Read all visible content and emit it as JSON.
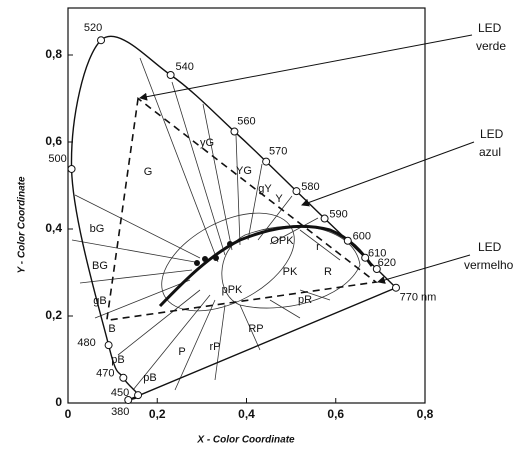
{
  "chart_data": {
    "type": "chromaticity",
    "x_label": "X - Color Coordinate",
    "y_label": "Y - Color Coordinate",
    "xlim": [
      0,
      0.8
    ],
    "ylim": [
      0,
      0.8
    ],
    "xticks": [
      0,
      {
        "value": 0.2,
        "label": "0,2"
      },
      {
        "value": 0.4,
        "label": "0,4"
      },
      {
        "value": 0.6,
        "label": "0,6"
      },
      {
        "value": 0.8,
        "label": "0,8"
      }
    ],
    "yticks": [
      0,
      {
        "value": 0.2,
        "label": "0,2"
      },
      {
        "value": 0.4,
        "label": "0,4"
      },
      {
        "value": 0.6,
        "label": "0,6"
      },
      {
        "value": 0.8,
        "label": "0,8"
      }
    ],
    "spectral_locus": {
      "labels": [
        "380",
        "450",
        "470",
        "480",
        "500",
        "520",
        "540",
        "560",
        "570",
        "580",
        "590",
        "600",
        "610",
        "620",
        "770 nm"
      ],
      "x": [
        0.135,
        0.157,
        0.124,
        0.091,
        0.008,
        0.074,
        0.23,
        0.373,
        0.444,
        0.512,
        0.575,
        0.627,
        0.666,
        0.692,
        0.735
      ],
      "y": [
        0.007,
        0.018,
        0.058,
        0.133,
        0.538,
        0.834,
        0.754,
        0.624,
        0.555,
        0.487,
        0.424,
        0.373,
        0.334,
        0.308,
        0.265
      ]
    },
    "region_labels": [
      "G",
      "yG",
      "YG",
      "gY",
      "Y",
      "bG",
      "BG",
      "gB",
      "B",
      "pB",
      "pB",
      "P",
      "rP",
      "RP",
      "pPK",
      "PK",
      "pR",
      "R",
      "OPK",
      "r"
    ],
    "led_triangle": {
      "x": [
        0.157,
        0.087,
        0.69
      ],
      "y": [
        0.7,
        0.19,
        0.278
      ]
    },
    "annotations": [
      [
        "LED",
        "verde"
      ],
      [
        "LED",
        "azul"
      ],
      [
        "LED",
        "vermelho"
      ]
    ]
  }
}
